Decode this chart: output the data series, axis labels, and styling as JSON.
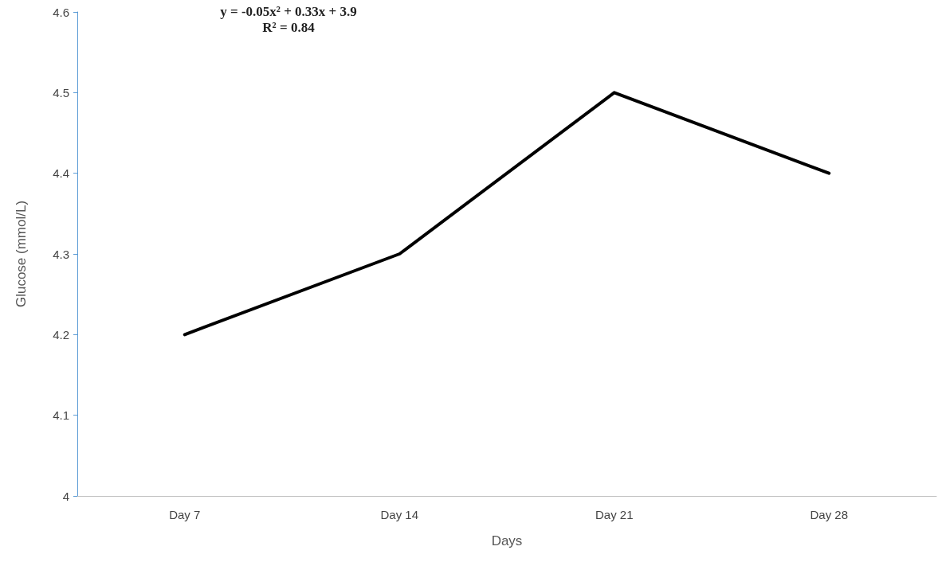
{
  "chart_data": {
    "type": "line",
    "xlabel": "Days",
    "ylabel": "Glucose (mmol/L)",
    "annotations": [
      "y = -0.05x² + 0.33x + 3.9",
      "R² = 0.84"
    ],
    "categories": [
      "Day 7",
      "Day 14",
      "Day 21",
      "Day 28"
    ],
    "series": [
      {
        "color": "#000000",
        "values": [
          4.2,
          4.3,
          4.5,
          4.4
        ]
      }
    ],
    "ylim": [
      4,
      4.6
    ],
    "yticks": [
      4,
      4.1,
      4.2,
      4.3,
      4.4,
      4.5,
      4.6
    ],
    "marker": "none",
    "line_style": "solid"
  }
}
